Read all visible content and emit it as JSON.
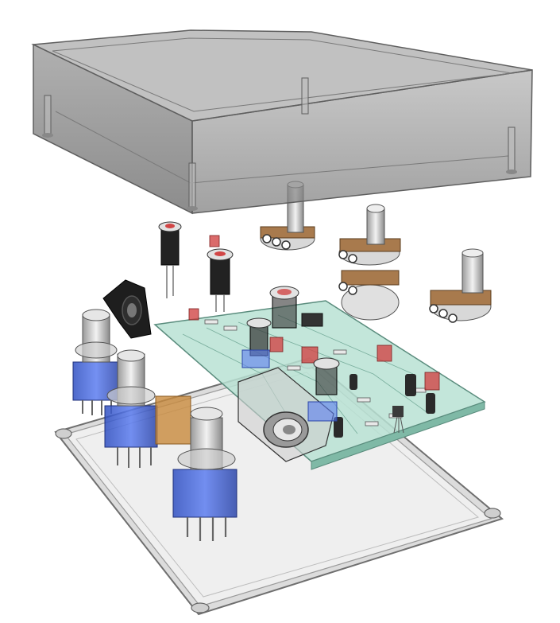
{
  "scene": {
    "subject": "exploded-assembly-render",
    "background": "#ffffff",
    "colors": {
      "enclosure_fill": "#8c8c8c",
      "enclosure_top": "#a9a9a9",
      "enclosure_edge": "#5e5e5e",
      "pcb_fill": "#b9e3d5",
      "pcb_edge": "#5b8f80",
      "switch_blue": "#3f63d6",
      "switch_blue_dark": "#2a3f9a",
      "metal_light": "#e2e2e2",
      "metal_dark": "#7a7a7a",
      "pot_brown": "#a87a4d",
      "cap_red": "#d14646",
      "jack_black": "#1e1e1e",
      "orange_block": "#c88a3c",
      "base_plate": "#ececec",
      "base_edge": "#777777"
    }
  }
}
